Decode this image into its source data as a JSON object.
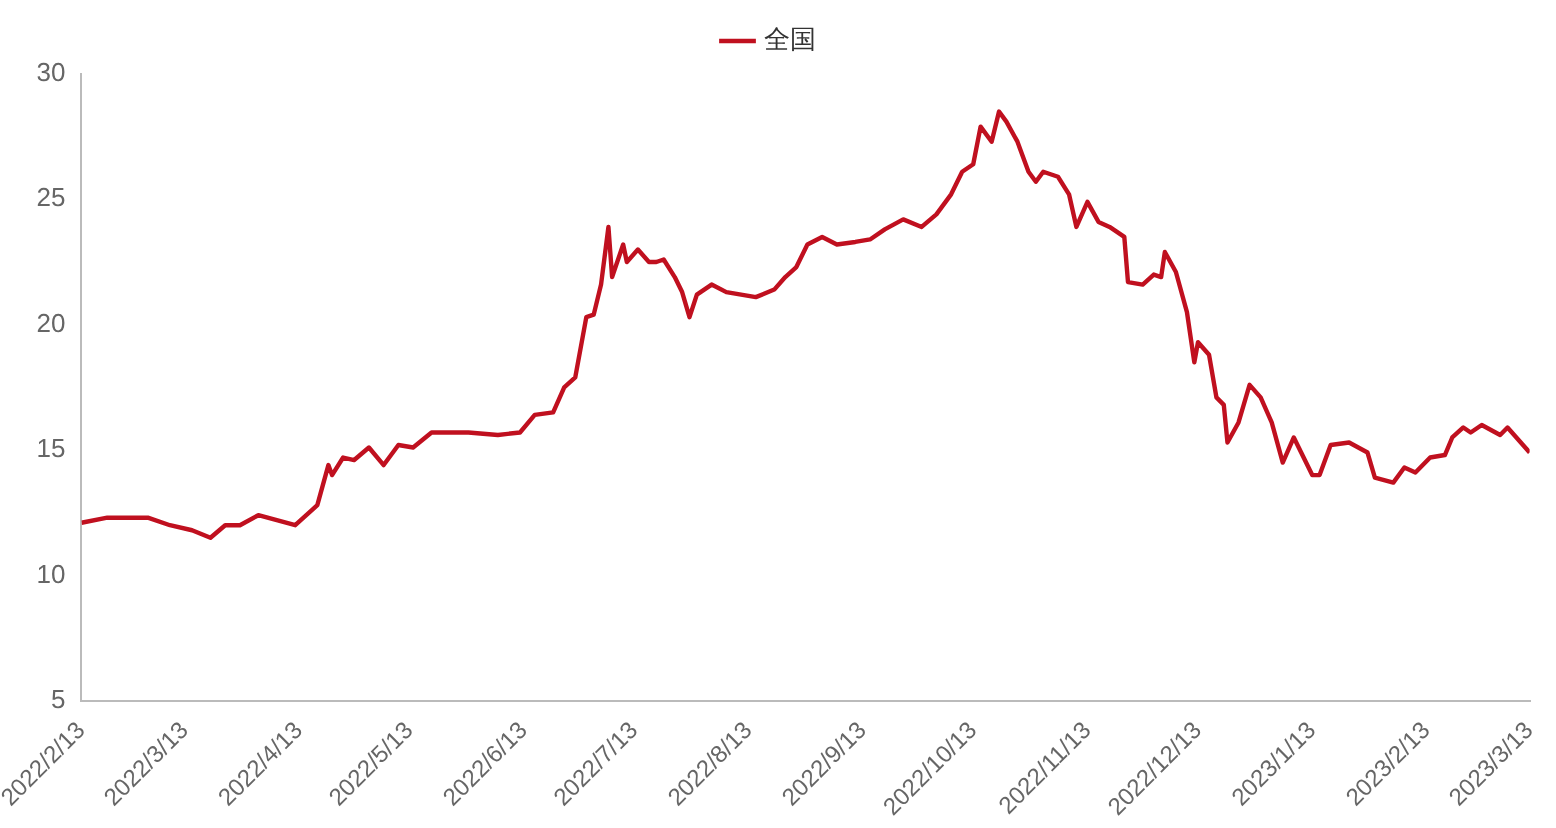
{
  "chart_data": {
    "type": "line",
    "legend": "top",
    "marker": "none",
    "line_style": "solid",
    "grid": false,
    "xlim": [
      "2022-02-13",
      "2023-03-13"
    ],
    "xticks": [
      {
        "value": "2022-02-13",
        "label": "2022/2/13"
      },
      {
        "value": "2022-03-13",
        "label": "2022/3/13"
      },
      {
        "value": "2022-04-13",
        "label": "2022/4/13"
      },
      {
        "value": "2022-05-13",
        "label": "2022/5/13"
      },
      {
        "value": "2022-06-13",
        "label": "2022/6/13"
      },
      {
        "value": "2022-07-13",
        "label": "2022/7/13"
      },
      {
        "value": "2022-08-13",
        "label": "2022/8/13"
      },
      {
        "value": "2022-09-13",
        "label": "2022/9/13"
      },
      {
        "value": "2022-10-13",
        "label": "2022/10/13"
      },
      {
        "value": "2022-11-13",
        "label": "2022/11/13"
      },
      {
        "value": "2022-12-13",
        "label": "2022/12/13"
      },
      {
        "value": "2023-01-13",
        "label": "2023/1/13"
      },
      {
        "value": "2023-02-13",
        "label": "2023/2/13"
      },
      {
        "value": "2023-03-13",
        "label": "2023/3/13"
      }
    ],
    "ylim": [
      5,
      30
    ],
    "yticks": [
      5,
      10,
      15,
      20,
      25,
      30
    ],
    "x": [
      "2022-02-13",
      "2022-02-20",
      "2022-03-03",
      "2022-03-09",
      "2022-03-15",
      "2022-03-20",
      "2022-03-24",
      "2022-03-28",
      "2022-04-02",
      "2022-04-07",
      "2022-04-12",
      "2022-04-18",
      "2022-04-21",
      "2022-04-22",
      "2022-04-25",
      "2022-04-28",
      "2022-05-02",
      "2022-05-06",
      "2022-05-10",
      "2022-05-14",
      "2022-05-19",
      "2022-05-29",
      "2022-06-06",
      "2022-06-12",
      "2022-06-16",
      "2022-06-21",
      "2022-06-24",
      "2022-06-27",
      "2022-06-30",
      "2022-07-02",
      "2022-07-04",
      "2022-07-06",
      "2022-07-07",
      "2022-07-10",
      "2022-07-11",
      "2022-07-14",
      "2022-07-17",
      "2022-07-19",
      "2022-07-21",
      "2022-07-24",
      "2022-07-26",
      "2022-07-28",
      "2022-07-30",
      "2022-08-03",
      "2022-08-07",
      "2022-08-11",
      "2022-08-15",
      "2022-08-20",
      "2022-08-23",
      "2022-08-26",
      "2022-08-29",
      "2022-09-02",
      "2022-09-06",
      "2022-09-11",
      "2022-09-15",
      "2022-09-19",
      "2022-09-24",
      "2022-09-29",
      "2022-10-03",
      "2022-10-07",
      "2022-10-10",
      "2022-10-13",
      "2022-10-15",
      "2022-10-18",
      "2022-10-20",
      "2022-10-22",
      "2022-10-25",
      "2022-10-28",
      "2022-10-30",
      "2022-11-01",
      "2022-11-05",
      "2022-11-08",
      "2022-11-10",
      "2022-11-13",
      "2022-11-16",
      "2022-11-19",
      "2022-11-23",
      "2022-11-24",
      "2022-11-28",
      "2022-12-01",
      "2022-12-03",
      "2022-12-04",
      "2022-12-07",
      "2022-12-10",
      "2022-12-12",
      "2022-12-13",
      "2022-12-16",
      "2022-12-18",
      "2022-12-20",
      "2022-12-21",
      "2022-12-24",
      "2022-12-27",
      "2022-12-30",
      "2023-01-02",
      "2023-01-05",
      "2023-01-08",
      "2023-01-10",
      "2023-01-13",
      "2023-01-15",
      "2023-01-18",
      "2023-01-23",
      "2023-01-28",
      "2023-01-30",
      "2023-02-04",
      "2023-02-07",
      "2023-02-10",
      "2023-02-14",
      "2023-02-18",
      "2023-02-20",
      "2023-02-23",
      "2023-02-25",
      "2023-02-28",
      "2023-03-05",
      "2023-03-07",
      "2023-03-13"
    ],
    "series": [
      {
        "name": "全国",
        "color": "#c0101f",
        "values": [
          12.1,
          12.3,
          12.3,
          12.0,
          11.8,
          11.5,
          12.0,
          12.0,
          12.4,
          12.2,
          12.0,
          12.8,
          14.4,
          14.0,
          14.7,
          14.6,
          15.1,
          14.4,
          15.2,
          15.1,
          15.7,
          15.7,
          15.6,
          15.7,
          16.4,
          16.5,
          17.5,
          17.9,
          20.3,
          20.4,
          21.6,
          23.9,
          21.9,
          23.2,
          22.5,
          23.0,
          22.5,
          22.5,
          22.6,
          21.9,
          21.3,
          20.3,
          21.2,
          21.6,
          21.3,
          21.2,
          21.1,
          21.4,
          21.9,
          22.3,
          23.2,
          23.5,
          23.2,
          23.3,
          23.4,
          23.8,
          24.2,
          23.9,
          24.4,
          25.2,
          26.1,
          26.4,
          27.9,
          27.3,
          28.5,
          28.1,
          27.3,
          26.1,
          25.7,
          26.1,
          25.9,
          25.2,
          23.9,
          24.9,
          24.1,
          23.9,
          23.5,
          21.7,
          21.6,
          22.0,
          21.9,
          22.9,
          22.1,
          20.5,
          18.5,
          19.3,
          18.8,
          17.1,
          16.8,
          15.3,
          16.1,
          17.6,
          17.1,
          16.1,
          14.5,
          15.5,
          14.9,
          14.0,
          14.0,
          15.2,
          15.3,
          14.9,
          13.9,
          13.7,
          14.3,
          14.1,
          14.7,
          14.8,
          15.5,
          15.9,
          15.7,
          16.0,
          15.6,
          15.9,
          14.9
        ]
      }
    ]
  }
}
